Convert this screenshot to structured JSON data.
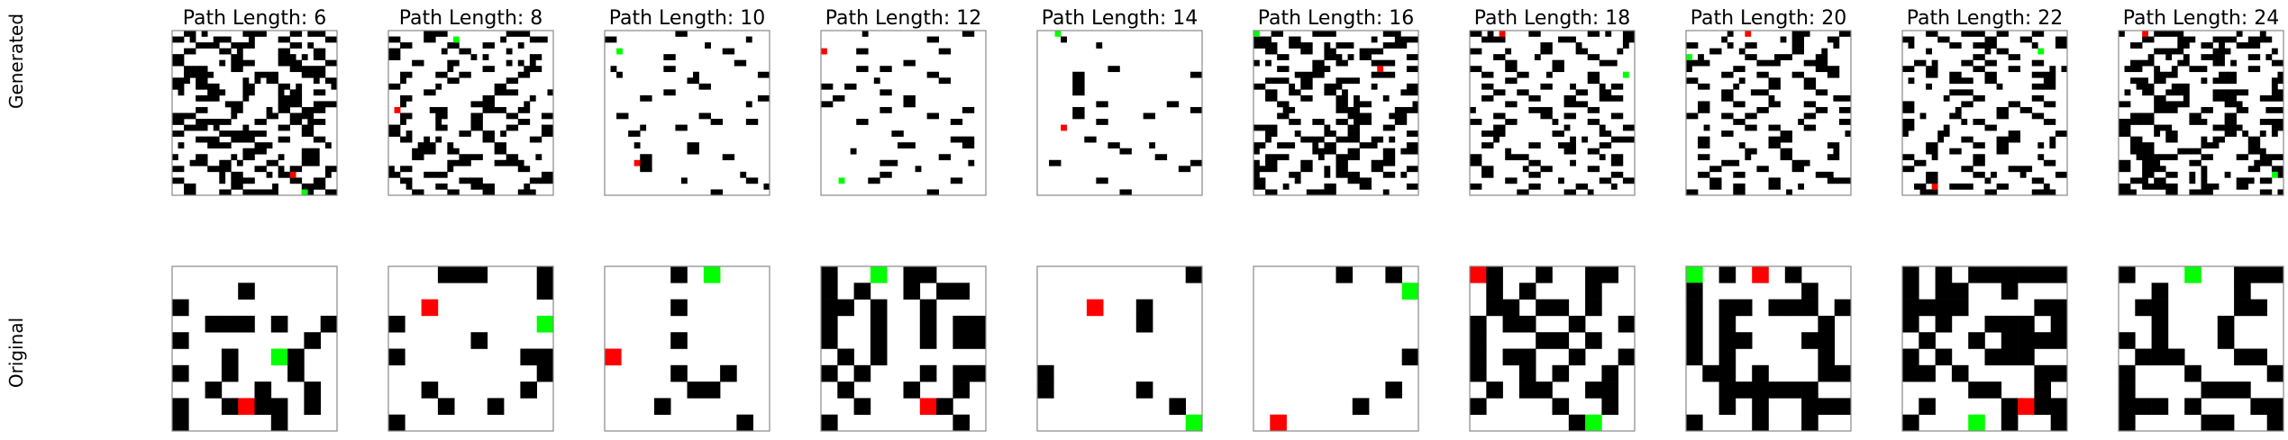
{
  "row_labels": [
    "Generated",
    "Original"
  ],
  "colors": {
    "wall": "#000000",
    "free": "#ffffff",
    "start": "#ff0000",
    "goal": "#00ff00",
    "frame": "#888888"
  },
  "panels": [
    {
      "title": "Path Length: 6"
    },
    {
      "title": "Path Length: 8"
    },
    {
      "title": "Path Length: 10"
    },
    {
      "title": "Path Length: 12"
    },
    {
      "title": "Path Length: 14"
    },
    {
      "title": "Path Length: 16"
    },
    {
      "title": "Path Length: 18"
    },
    {
      "title": "Path Length: 20"
    },
    {
      "title": "Path Length: 22"
    },
    {
      "title": "Path Length: 24"
    }
  ],
  "original_grids": [
    [
      "..........",
      "....#.....",
      "#.........",
      "..###.#..#",
      "#.......#.",
      "...#..G#..",
      "#..#...#..",
      "..#..#..#.",
      "#..#R##.#.",
      "#.....#..."
    ],
    [
      "...###...#",
      ".........#",
      "..R.......",
      "#........G",
      ".....#....",
      "#.......##",
      ".........#",
      "..#.....#.",
      "...#..#...",
      "#........."
    ],
    [
      "....#.G...",
      "..........",
      "....#.....",
      "..........",
      "....#.....",
      "R.........",
      "....#..#..",
      ".....##...",
      "...#......",
      "........#."
    ],
    [
      "#..G.##...",
      "#.#..#.##.",
      "##.#..#...",
      "#..#..#.##",
      "#..#..#.##",
      ".#.#......",
      "#.#...#.##",
      ".#...#..#.",
      "..#...R#..",
      "#.......#."
    ],
    [
      ".........#",
      "..........",
      "...R..#...",
      "......#...",
      "..........",
      "..........",
      "#.........",
      "#.....#...",
      "........#.",
      ".........G"
    ],
    [
      ".....#..#.",
      ".........G",
      "..........",
      "..........",
      "..........",
      ".........#",
      "..........",
      "........#.",
      "......#...",
      ".R........"
    ],
    [
      "R#..#..##.",
      ".#.#...#..",
      ".##.##.#..",
      "#.##..#..#",
      "#...##.#..",
      "#.##..#..#",
      "#..#.#..#.",
      ".#.##..##.",
      "#....#..#.",
      "......#G.."
    ],
    [
      "G.#.R.#...",
      "#......#..",
      "#.##.###.#",
      "#.#.....#.",
      "#.##...##.",
      "#.#.....#.",
      ".##.#...##",
      "..######..",
      "..#.#..###",
      "#...#..#.."
    ],
    [
      "#.#.######",
      "#.##..#...",
      "####....##",
      "#.#..###.#",
      ".#..#.####",
      "#.#..###..",
      "##.#....##",
      "....##..#.",
      ".#....#R##",
      "#...G.#..#"
    ],
    [
      "#...G..###",
      "..#....#..",
      ".##....##.",
      "..#...#...",
      "#.#...#...",
      ".###...##.",
      "#...#....#",
      "#....###..",
      "###.#...##",
      "#....##..#"
    ]
  ]
}
